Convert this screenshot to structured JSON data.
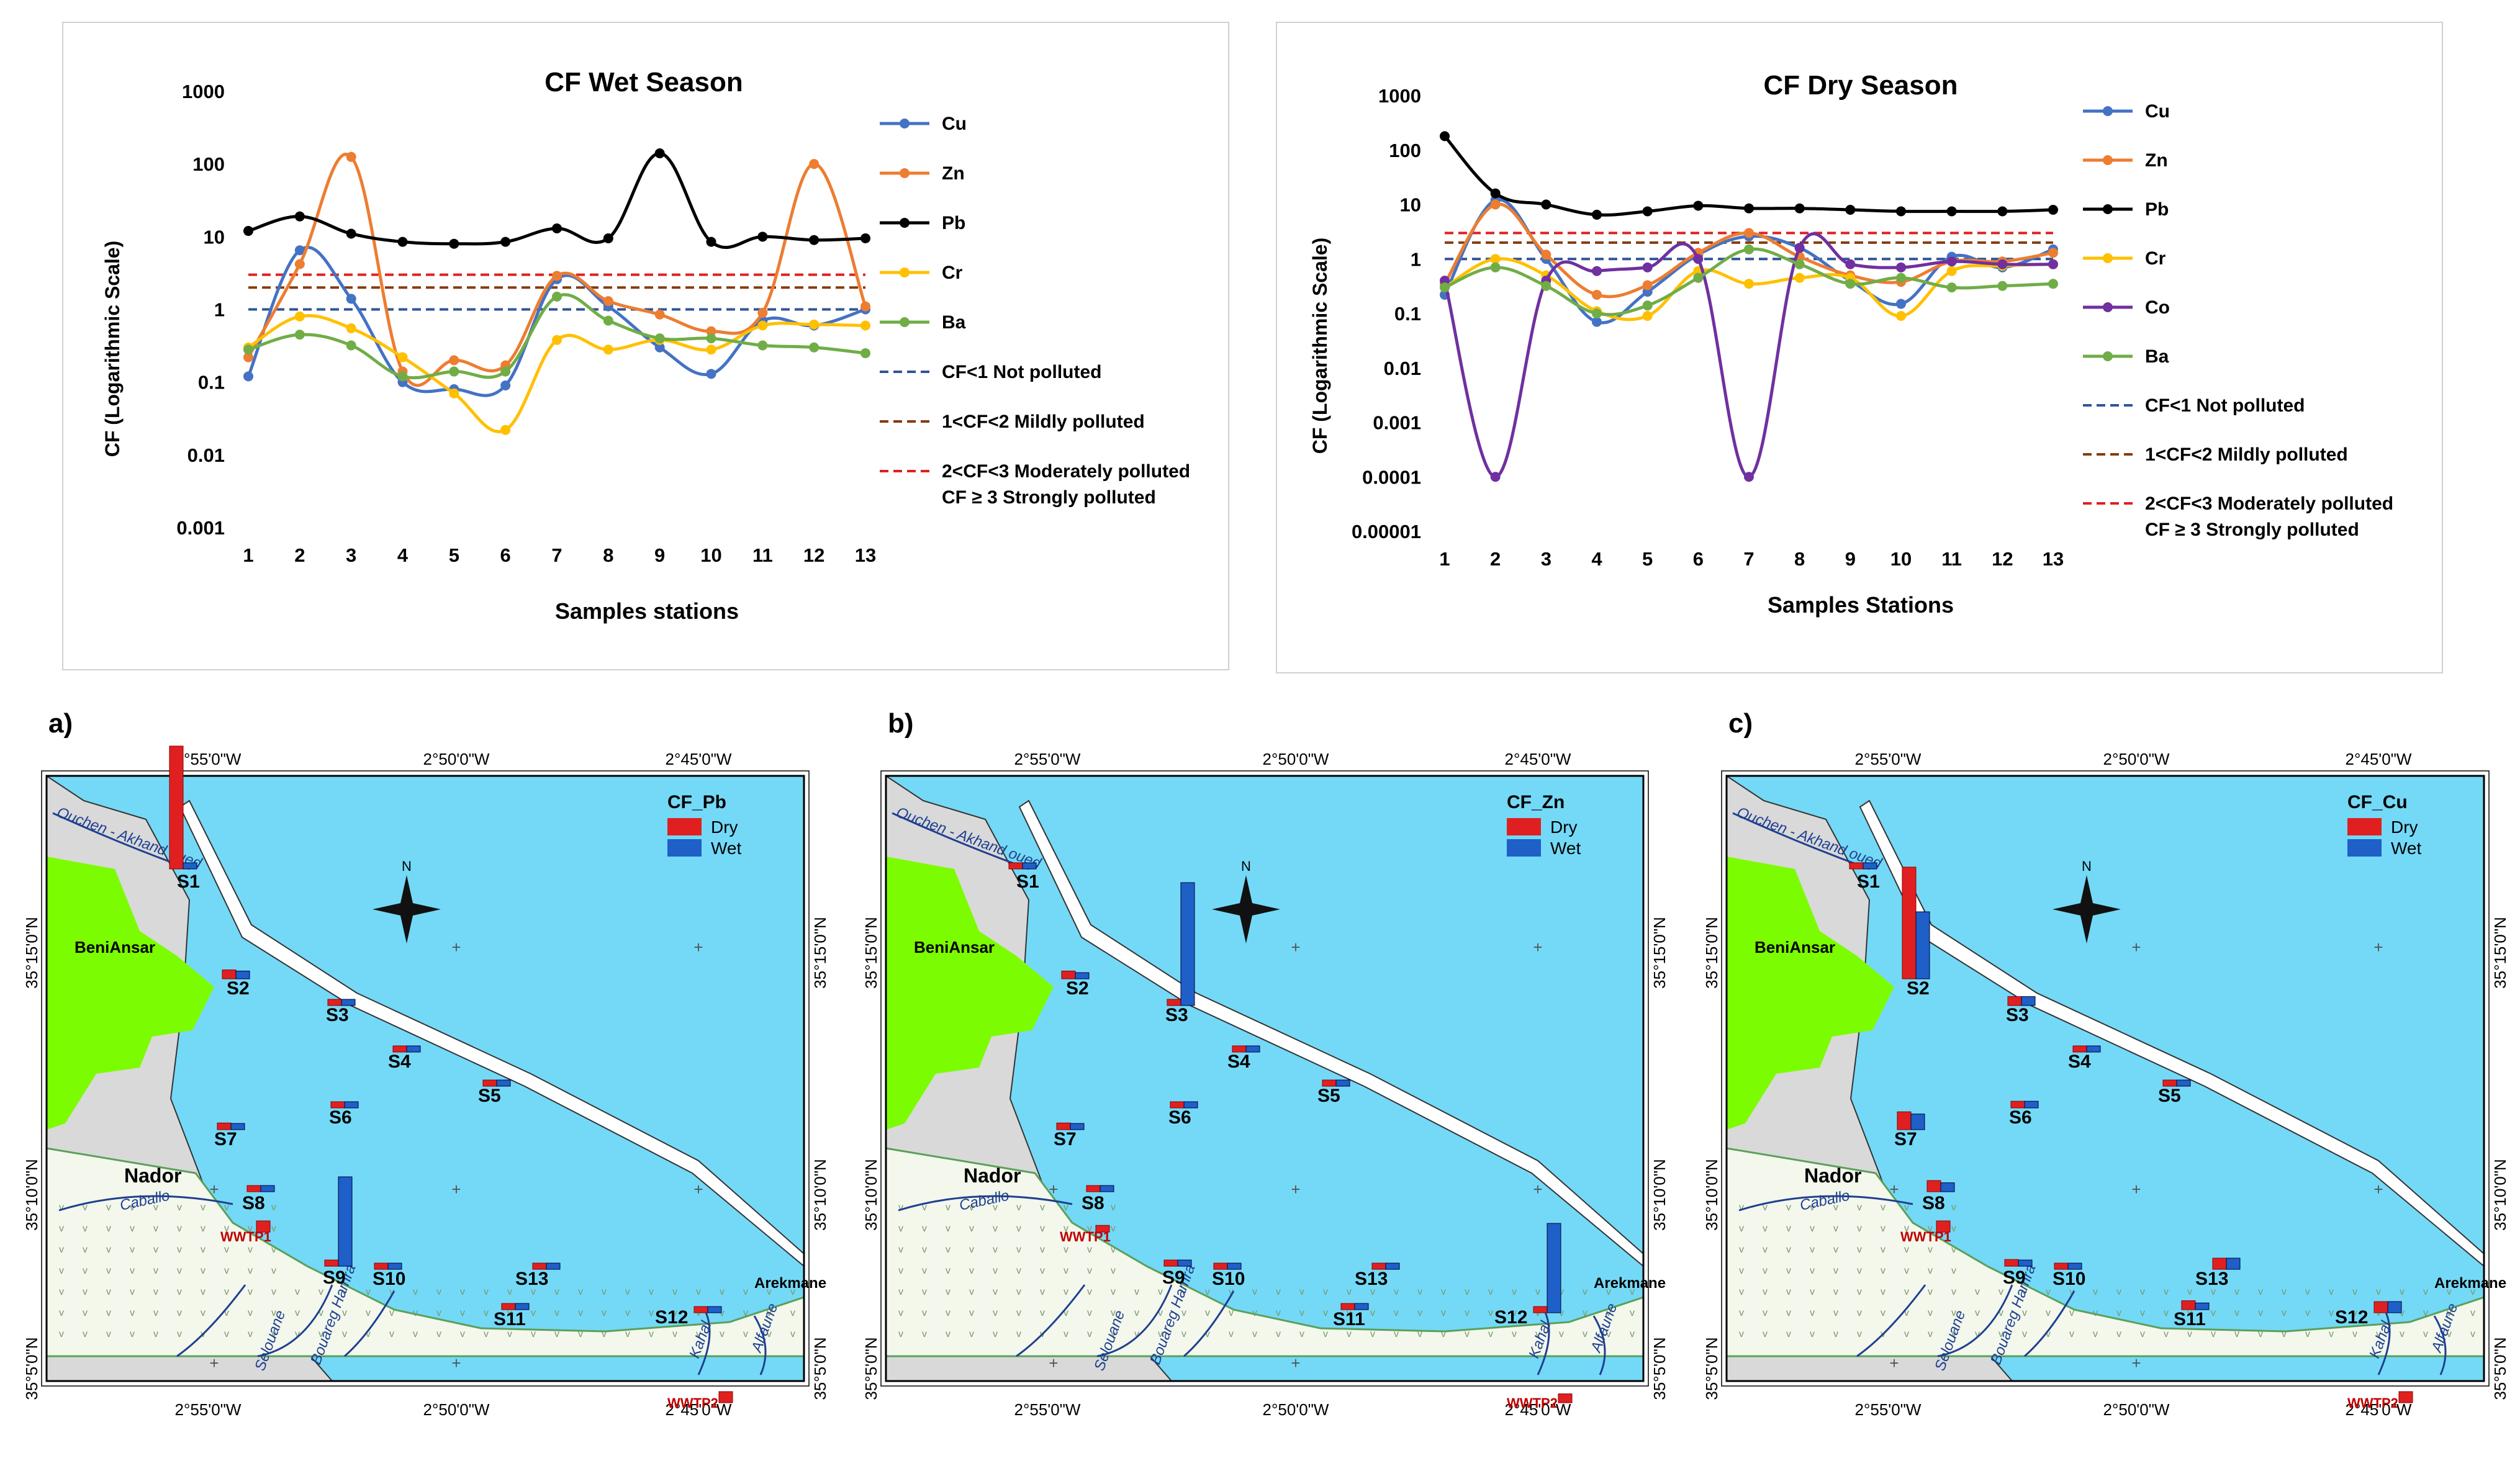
{
  "chart_data": [
    {
      "type": "line",
      "title": "CF Wet Season",
      "xlabel": "Samples stations",
      "ylabel": "CF (Logarithmic Scale)",
      "yscale": "log",
      "ylim": [
        0.001,
        1000
      ],
      "yticks": [
        "0.001",
        "0.01",
        "0.1",
        "1",
        "10",
        "100",
        "1000"
      ],
      "categories": [
        "1",
        "2",
        "3",
        "4",
        "5",
        "6",
        "7",
        "8",
        "9",
        "10",
        "11",
        "12",
        "13"
      ],
      "series": [
        {
          "name": "Cu",
          "color": "#4472C4",
          "values": [
            0.12,
            6.5,
            1.4,
            0.1,
            0.08,
            0.09,
            2.6,
            1.1,
            0.3,
            0.13,
            0.7,
            0.6,
            1.0
          ]
        },
        {
          "name": "Zn",
          "color": "#ED7D31",
          "values": [
            0.22,
            4.2,
            125,
            0.14,
            0.2,
            0.17,
            2.9,
            1.3,
            0.85,
            0.5,
            0.9,
            100,
            1.1
          ]
        },
        {
          "name": "Pb",
          "color": "#000000",
          "values": [
            12,
            19,
            11,
            8.5,
            8,
            8.5,
            13,
            9.5,
            140,
            8.5,
            10,
            9,
            9.5
          ]
        },
        {
          "name": "Cr",
          "color": "#FFC000",
          "values": [
            0.3,
            0.8,
            0.55,
            0.22,
            0.07,
            0.022,
            0.38,
            0.28,
            0.38,
            0.28,
            0.6,
            0.62,
            0.6
          ]
        },
        {
          "name": "Ba",
          "color": "#70AD47",
          "values": [
            0.28,
            0.45,
            0.32,
            0.12,
            0.14,
            0.14,
            1.5,
            0.7,
            0.4,
            0.4,
            0.32,
            0.3,
            0.25
          ]
        }
      ],
      "thresholds": [
        {
          "label": "CF<1   Not polluted",
          "value": 1,
          "color": "#2F5597"
        },
        {
          "label": "1<CF<2   Mildly polluted",
          "value": 2,
          "color": "#843C0C"
        },
        {
          "label": "2<CF<3  Moderately polluted",
          "value": 3,
          "color": "#E02020"
        }
      ],
      "legend_extra": "CF ≥ 3 Strongly polluted"
    },
    {
      "type": "line",
      "title": "CF Dry Season",
      "xlabel": "Samples Stations",
      "ylabel": "CF (Logarithmic Scale)",
      "yscale": "log",
      "ylim": [
        1e-05,
        1000
      ],
      "yticks": [
        "0.00001",
        "0.0001",
        "0.001",
        "0.01",
        "0.1",
        "1",
        "10",
        "100",
        "1000"
      ],
      "categories": [
        "1",
        "2",
        "3",
        "4",
        "5",
        "6",
        "7",
        "8",
        "9",
        "10",
        "11",
        "12",
        "13"
      ],
      "series": [
        {
          "name": "Cu",
          "color": "#4472C4",
          "values": [
            0.22,
            12,
            1.0,
            0.07,
            0.25,
            1.2,
            2.6,
            1.6,
            0.4,
            0.15,
            1.1,
            0.7,
            1.5
          ]
        },
        {
          "name": "Zn",
          "color": "#ED7D31",
          "values": [
            0.35,
            10,
            1.2,
            0.22,
            0.33,
            1.3,
            3.0,
            1.1,
            0.5,
            0.38,
            0.9,
            0.9,
            1.3
          ]
        },
        {
          "name": "Pb",
          "color": "#000000",
          "values": [
            180,
            16,
            10,
            6.5,
            7.5,
            9.5,
            8.5,
            8.5,
            8,
            7.5,
            7.5,
            7.5,
            8
          ]
        },
        {
          "name": "Cr",
          "color": "#FFC000",
          "values": [
            0.3,
            1.0,
            0.5,
            0.11,
            0.09,
            0.6,
            0.35,
            0.45,
            0.45,
            0.09,
            0.6,
            0.75,
            0.8
          ]
        },
        {
          "name": "Co",
          "color": "#7030A0",
          "values": [
            0.4,
            0.0001,
            0.4,
            0.6,
            0.7,
            1.0,
            0.0001,
            1.6,
            0.8,
            0.7,
            0.9,
            0.8,
            0.8
          ]
        },
        {
          "name": "Ba",
          "color": "#70AD47",
          "values": [
            0.3,
            0.7,
            0.32,
            0.1,
            0.14,
            0.45,
            1.5,
            0.8,
            0.35,
            0.45,
            0.3,
            0.32,
            0.35
          ]
        }
      ],
      "thresholds": [
        {
          "label": "CF<1    Not polluted",
          "value": 1,
          "color": "#2F5597"
        },
        {
          "label": "1<CF<2    Mildly polluted",
          "value": 2,
          "color": "#843C0C"
        },
        {
          "label": "2<CF<3  Moderately polluted",
          "value": 3,
          "color": "#E02020"
        }
      ],
      "legend_extra": "CF ≥ 3 Strongly polluted"
    }
  ],
  "maps": [
    {
      "panel_label": "a)",
      "legend_title": "CF_Pb",
      "legend_items": [
        "Dry",
        "Wet"
      ],
      "bars": {
        "S1": [
          5.5,
          0.2
        ],
        "S2": [
          0.4,
          0.35
        ],
        "S3": [
          0.2,
          0.2
        ],
        "S4": [
          0.2,
          0.15
        ],
        "S5": [
          0.15,
          0.15
        ],
        "S6": [
          0.15,
          0.2
        ],
        "S7": [
          0.3,
          0.25
        ],
        "S8": [
          0.2,
          0.2
        ],
        "S9": [
          0.2,
          4.0
        ],
        "S10": [
          0.15,
          0.15
        ],
        "S11": [
          0.2,
          0.2
        ],
        "S12": [
          0.25,
          0.25
        ],
        "S13": [
          0.2,
          0.2
        ],
        "WWTP1": [
          0.5,
          0
        ],
        "WWTP2": [
          0.5,
          0
        ]
      }
    },
    {
      "panel_label": "b)",
      "legend_title": "CF_Zn",
      "legend_items": [
        "Dry",
        "Wet"
      ],
      "bars": {
        "S1": [
          0.2,
          0.15
        ],
        "S2": [
          0.35,
          0.25
        ],
        "S3": [
          0.15,
          5.5
        ],
        "S4": [
          0.15,
          0.1
        ],
        "S5": [
          0.1,
          0.1
        ],
        "S6": [
          0.15,
          0.1
        ],
        "S7": [
          0.3,
          0.2
        ],
        "S8": [
          0.1,
          0.1
        ],
        "S9": [
          0.15,
          0.1
        ],
        "S10": [
          0.1,
          0.1
        ],
        "S11": [
          0.1,
          0.1
        ],
        "S12": [
          0.1,
          4.0
        ],
        "S13": [
          0.15,
          0.15
        ],
        "WWTP1": [
          0.3,
          0
        ],
        "WWTP2": [
          0.4,
          0
        ]
      }
    },
    {
      "panel_label": "c)",
      "legend_title": "CF_Cu",
      "legend_items": [
        "Dry",
        "Wet"
      ],
      "bars": {
        "S1": [
          0.2,
          0.15
        ],
        "S2": [
          5.0,
          3.0
        ],
        "S3": [
          0.4,
          0.4
        ],
        "S4": [
          0.15,
          0.15
        ],
        "S5": [
          0.2,
          0.2
        ],
        "S6": [
          0.3,
          0.3
        ],
        "S7": [
          0.8,
          0.7
        ],
        "S8": [
          0.5,
          0.4
        ],
        "S9": [
          0.3,
          0.2
        ],
        "S10": [
          0.15,
          0.15
        ],
        "S11": [
          0.4,
          0.3
        ],
        "S12": [
          0.5,
          0.5
        ],
        "S13": [
          0.5,
          0.5
        ],
        "WWTP1": [
          0.5,
          0
        ],
        "WWTP2": [
          0.5,
          0
        ]
      }
    }
  ],
  "map_common": {
    "top_coords": [
      "2°55'0\"W",
      "2°50'0\"W",
      "2°45'0\"W"
    ],
    "bottom_coords": [
      "2°55'0\"W",
      "2°50'0\"W",
      "2°45'0\"W"
    ],
    "side_coords": [
      "35°15'0\"N",
      "35°10'0\"N",
      "35°5'0\"N"
    ],
    "north_label": "N",
    "towns": [
      "BeniAnsar",
      "Nador",
      "Arekmane"
    ],
    "rivers": [
      "Ouchen - Akhand oued",
      "Caballo",
      "Selouane",
      "Bouareg Hamra",
      "Kahal",
      "Alfaune"
    ],
    "stations": [
      "S1",
      "S2",
      "S3",
      "S4",
      "S5",
      "S6",
      "S7",
      "S8",
      "S9",
      "S10",
      "S11",
      "S12",
      "S13"
    ],
    "wwtp": [
      "WWTP1",
      "WWTP2"
    ]
  },
  "colors": {
    "dry": "#E02020",
    "wet": "#1F5FC8",
    "sea": "#74D9F7",
    "green": "#7CFC00",
    "land": "#D9D9D9",
    "plain": "#F3F7EC"
  }
}
